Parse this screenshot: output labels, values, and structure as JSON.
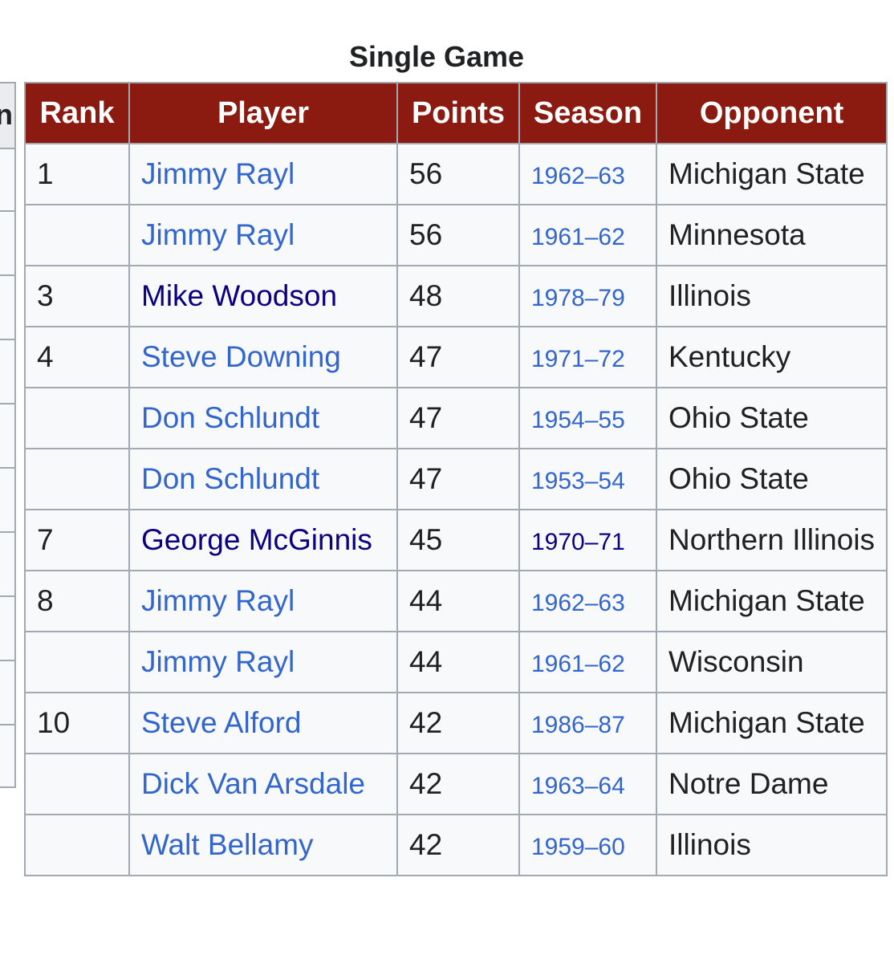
{
  "caption": "Single Game",
  "headers": {
    "rank": "Rank",
    "player": "Player",
    "points": "Points",
    "season": "Season",
    "opponent": "Opponent"
  },
  "prev_table": {
    "header_fragment": "n"
  },
  "rows": [
    {
      "rank": "1",
      "player": "Jimmy Rayl",
      "points": "56",
      "season": "1962–63",
      "opponent": "Michigan State"
    },
    {
      "rank": "",
      "player": "Jimmy Rayl",
      "points": "56",
      "season": "1961–62",
      "opponent": "Minnesota"
    },
    {
      "rank": "3",
      "player": "Mike Woodson",
      "points": "48",
      "season": "1978–79",
      "opponent": "Illinois"
    },
    {
      "rank": "4",
      "player": "Steve Downing",
      "points": "47",
      "season": "1971–72",
      "opponent": "Kentucky"
    },
    {
      "rank": "",
      "player": "Don Schlundt",
      "points": "47",
      "season": "1954–55",
      "opponent": "Ohio State"
    },
    {
      "rank": "",
      "player": "Don Schlundt",
      "points": "47",
      "season": "1953–54",
      "opponent": "Ohio State"
    },
    {
      "rank": "7",
      "player": "George McGinnis",
      "points": "45",
      "season": "1970–71",
      "opponent": "Northern Illinois"
    },
    {
      "rank": "8",
      "player": "Jimmy Rayl",
      "points": "44",
      "season": "1962–63",
      "opponent": "Michigan State"
    },
    {
      "rank": "",
      "player": "Jimmy Rayl",
      "points": "44",
      "season": "1961–62",
      "opponent": "Wisconsin"
    },
    {
      "rank": "10",
      "player": "Steve Alford",
      "points": "42",
      "season": "1986–87",
      "opponent": "Michigan State"
    },
    {
      "rank": "",
      "player": "Dick Van Arsdale",
      "points": "42",
      "season": "1963–64",
      "opponent": "Notre Dame"
    },
    {
      "rank": "",
      "player": "Walt Bellamy",
      "points": "42",
      "season": "1959–60",
      "opponent": "Illinois"
    }
  ],
  "colors": {
    "header_bg": "#8b1a10",
    "link": "#3366cc",
    "visited_link": "#0b0080",
    "border": "#a2a9b1",
    "cell_bg": "#f8f9fa"
  }
}
